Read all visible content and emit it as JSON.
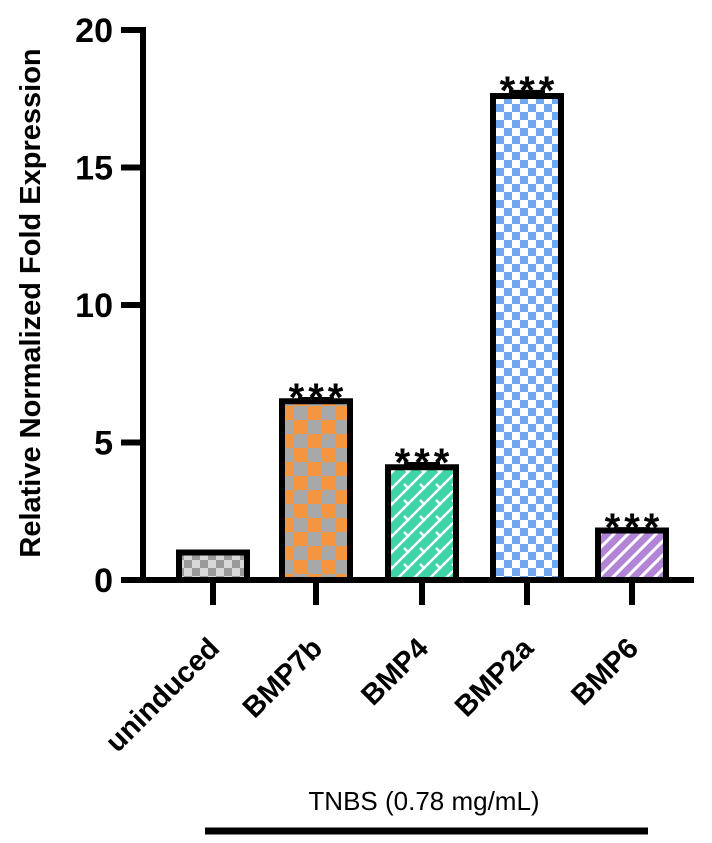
{
  "chart_data": {
    "type": "bar",
    "title": "",
    "xlabel": "",
    "ylabel": "Relative Normalized Fold Expression",
    "ylim": [
      0,
      20
    ],
    "yticks": [
      0,
      5,
      10,
      15,
      20
    ],
    "categories": [
      "uninduced",
      "BMP7b",
      "BMP4",
      "BMP2a",
      "BMP6"
    ],
    "values": [
      1.0,
      6.5,
      4.1,
      17.6,
      1.8
    ],
    "errors": [
      0.0,
      0.08,
      0.12,
      0.15,
      0.05
    ],
    "significance": [
      "",
      "***",
      "***",
      "***",
      "***"
    ],
    "colors": [
      "#9a9a9a",
      "#f3963f",
      "#3fd4a8",
      "#6fa8ee",
      "#b184d6"
    ],
    "patterns": [
      "checker",
      "checker",
      "diagonal-lattice",
      "checker",
      "diagonal-stripes"
    ],
    "group_annotation": {
      "label": "TNBS (0.78 mg/mL)",
      "categories": [
        "BMP7b",
        "BMP4",
        "BMP2a",
        "BMP6"
      ]
    }
  }
}
